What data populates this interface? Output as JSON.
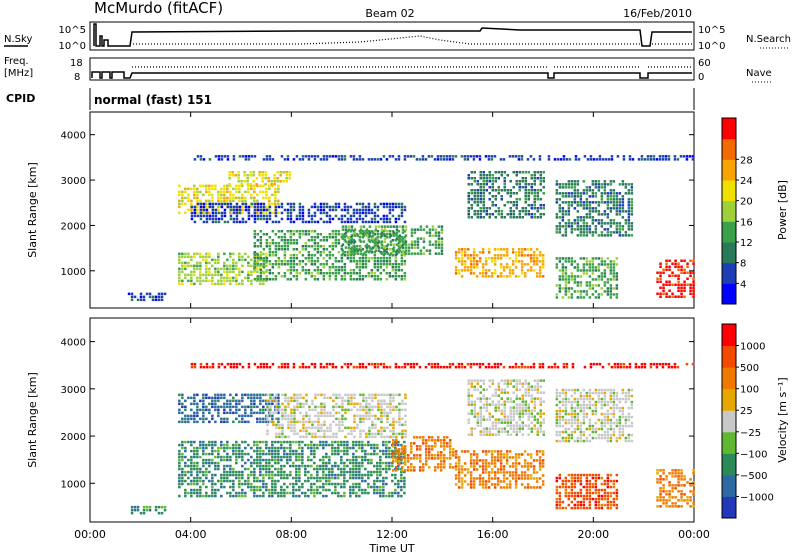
{
  "header": {
    "station": "McMurdo (fitACF)",
    "beam": "Beam 02",
    "date": "16/Feb/2010"
  },
  "noise_panel": {
    "left_label": "N.Sky",
    "right_label": "N.Search",
    "left_ticks": [
      "10^5",
      "10^0"
    ],
    "right_ticks": [
      "10^5",
      "10^0"
    ]
  },
  "freq_panel": {
    "left_label_1": "Freq.",
    "left_label_2": "[MHz]",
    "right_label": "Nave",
    "left_ticks": [
      "18",
      "8"
    ],
    "right_ticks": [
      "60",
      "0"
    ]
  },
  "cpid_panel": {
    "label": "CPID",
    "value": "normal (fast) 151"
  },
  "x_axis": {
    "label": "Time UT",
    "ticks": [
      "00:00",
      "04:00",
      "08:00",
      "12:00",
      "16:00",
      "20:00",
      "00:00"
    ]
  },
  "chart_data": [
    {
      "type": "heatmap",
      "name": "power",
      "ylabel": "Slant Range [km]",
      "yticks": [
        1000,
        2000,
        3000,
        4000
      ],
      "ylim": [
        180,
        4500
      ],
      "xlim_hours": [
        0,
        24
      ],
      "colorbar": {
        "label": "Power [dB]",
        "ticks": [
          "4",
          "8",
          "12",
          "16",
          "20",
          "24",
          "28"
        ],
        "colors": [
          "#0000ff",
          "#1e3fb4",
          "#2a7a5a",
          "#3aa14a",
          "#9ed03a",
          "#f0e000",
          "#f7a400",
          "#f26a00",
          "#ff0000"
        ]
      },
      "regions": [
        {
          "x": [
            1.5,
            3.0
          ],
          "y": [
            380,
            520
          ],
          "level": 1
        },
        {
          "x": [
            3.5,
            7.5
          ],
          "y": [
            2300,
            2900
          ],
          "level": 5
        },
        {
          "x": [
            5.5,
            8.0
          ],
          "y": [
            2900,
            3200
          ],
          "level": 5
        },
        {
          "x": [
            4.0,
            12.5
          ],
          "y": [
            2100,
            2500
          ],
          "level": 1
        },
        {
          "x": [
            3.5,
            7.0
          ],
          "y": [
            700,
            1400
          ],
          "level": 4
        },
        {
          "x": [
            6.5,
            12.5
          ],
          "y": [
            800,
            1900
          ],
          "level": 3
        },
        {
          "x": [
            10.0,
            14.0
          ],
          "y": [
            1400,
            2000
          ],
          "level": 3
        },
        {
          "x": [
            14.5,
            18.0
          ],
          "y": [
            900,
            1500
          ],
          "level": 6
        },
        {
          "x": [
            15.0,
            18.0
          ],
          "y": [
            2200,
            3200
          ],
          "level": 2
        },
        {
          "x": [
            18.5,
            21.5
          ],
          "y": [
            1800,
            3000
          ],
          "level": 2
        },
        {
          "x": [
            18.5,
            21.0
          ],
          "y": [
            400,
            1300
          ],
          "level": 3
        },
        {
          "x": [
            22.5,
            24.0
          ],
          "y": [
            450,
            1250
          ],
          "level": 8
        },
        {
          "x": [
            4.0,
            24.0
          ],
          "y": [
            3450,
            3550
          ],
          "level": 1
        }
      ]
    },
    {
      "type": "heatmap",
      "name": "velocity",
      "ylabel": "Slant Range [km]",
      "yticks": [
        1000,
        2000,
        3000,
        4000
      ],
      "ylim": [
        180,
        4500
      ],
      "xlim_hours": [
        0,
        24
      ],
      "colorbar": {
        "label": "Velocity [m s⁻¹]",
        "ticks": [
          "1000",
          "500",
          "100",
          "25",
          "−25",
          "−100",
          "−500",
          "−1000"
        ],
        "colors": [
          "#2238b8",
          "#2a6aa0",
          "#2a8a5a",
          "#5fb832",
          "#c8c8c8",
          "#e6a800",
          "#f07a00",
          "#f24a00",
          "#ff0000"
        ]
      },
      "regions": [
        {
          "x": [
            1.5,
            3.0
          ],
          "y": [
            380,
            520
          ],
          "level": 2
        },
        {
          "x": [
            3.5,
            7.5
          ],
          "y": [
            2300,
            2900
          ],
          "level": 1
        },
        {
          "x": [
            7.0,
            12.5
          ],
          "y": [
            2000,
            2900
          ],
          "level": 4
        },
        {
          "x": [
            3.5,
            12.5
          ],
          "y": [
            700,
            1900
          ],
          "level": 2
        },
        {
          "x": [
            12.0,
            14.5
          ],
          "y": [
            1300,
            2000
          ],
          "level": 6
        },
        {
          "x": [
            14.5,
            18.0
          ],
          "y": [
            900,
            1700
          ],
          "level": 6
        },
        {
          "x": [
            15.0,
            18.0
          ],
          "y": [
            2000,
            3200
          ],
          "level": 4
        },
        {
          "x": [
            18.5,
            21.5
          ],
          "y": [
            1900,
            3000
          ],
          "level": 4
        },
        {
          "x": [
            18.5,
            21.0
          ],
          "y": [
            500,
            1200
          ],
          "level": 7
        },
        {
          "x": [
            22.5,
            24.0
          ],
          "y": [
            500,
            1300
          ],
          "level": 6
        },
        {
          "x": [
            4.0,
            24.0
          ],
          "y": [
            3450,
            3550
          ],
          "level": 8
        }
      ]
    }
  ]
}
